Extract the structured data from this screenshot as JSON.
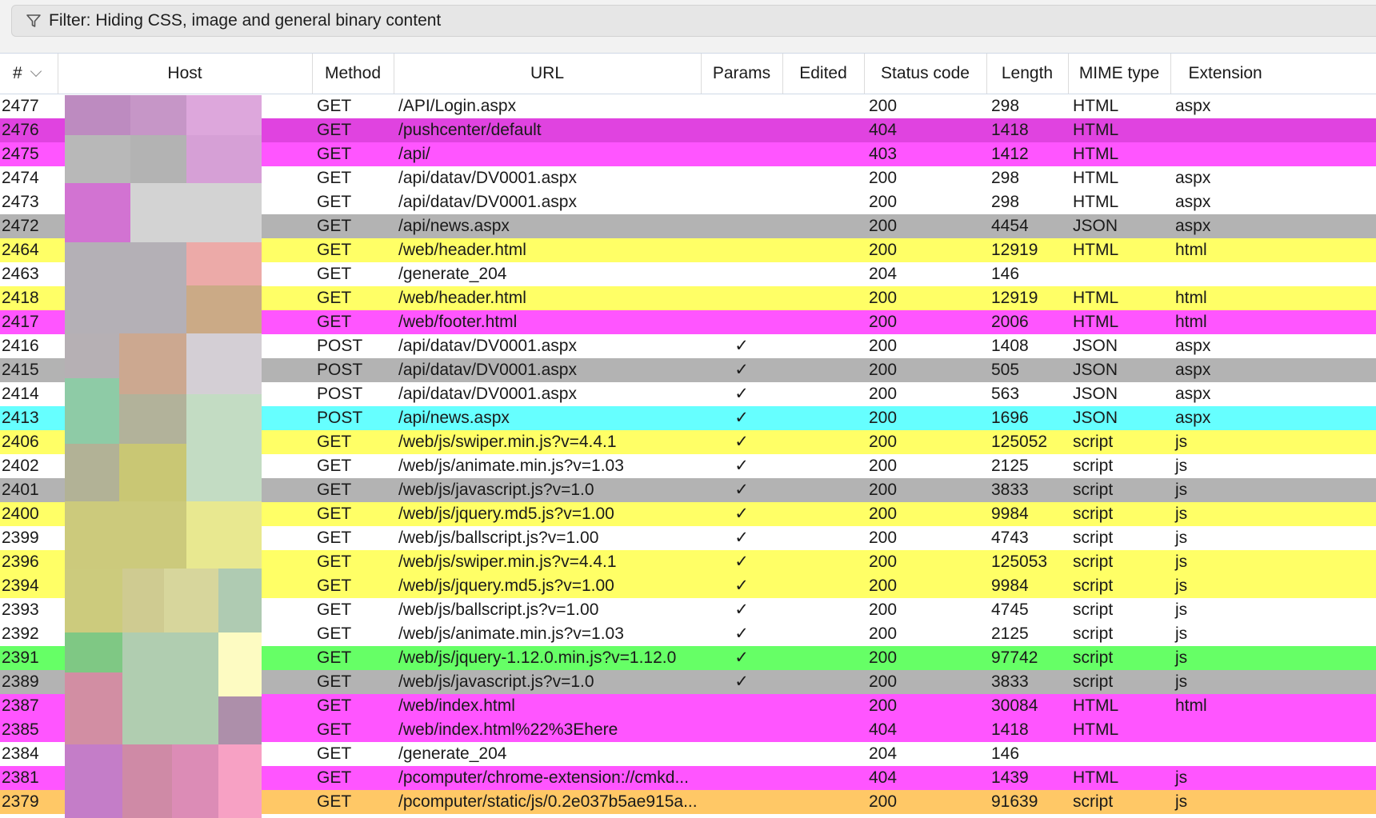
{
  "filter": {
    "icon": "funnel-icon",
    "text": "Filter: Hiding CSS, image and general binary content"
  },
  "columns": [
    {
      "key": "num",
      "label": "#"
    },
    {
      "key": "host",
      "label": "Host"
    },
    {
      "key": "method",
      "label": "Method"
    },
    {
      "key": "url",
      "label": "URL"
    },
    {
      "key": "params",
      "label": "Params"
    },
    {
      "key": "edited",
      "label": "Edited"
    },
    {
      "key": "status",
      "label": "Status code"
    },
    {
      "key": "length",
      "label": "Length"
    },
    {
      "key": "mime",
      "label": "MIME type"
    },
    {
      "key": "ext",
      "label": "Extension"
    }
  ],
  "sort_indicator": "chevron-down-icon",
  "check_glyph": "✓",
  "row_colors": {
    "white": "#ffffff",
    "magenta_dark": "#e043e0",
    "magenta": "#ff55ff",
    "gray": "#b3b3b3",
    "yellow": "#ffff66",
    "cyan": "#66ffff",
    "green": "#66ff66",
    "orange": "#ffc866"
  },
  "rows": [
    {
      "num": "2477",
      "method": "GET",
      "url": "/API/Login.aspx",
      "params": false,
      "status": "200",
      "length": "298",
      "mime": "HTML",
      "ext": "aspx",
      "color": "white"
    },
    {
      "num": "2476",
      "method": "GET",
      "url": "/pushcenter/default",
      "params": false,
      "status": "404",
      "length": "1418",
      "mime": "HTML",
      "ext": "",
      "color": "magenta_dark"
    },
    {
      "num": "2475",
      "method": "GET",
      "url": "/api/",
      "params": false,
      "status": "403",
      "length": "1412",
      "mime": "HTML",
      "ext": "",
      "color": "magenta"
    },
    {
      "num": "2474",
      "method": "GET",
      "url": "/api/datav/DV0001.aspx",
      "params": false,
      "status": "200",
      "length": "298",
      "mime": "HTML",
      "ext": "aspx",
      "color": "white"
    },
    {
      "num": "2473",
      "method": "GET",
      "url": "/api/datav/DV0001.aspx",
      "params": false,
      "status": "200",
      "length": "298",
      "mime": "HTML",
      "ext": "aspx",
      "color": "white"
    },
    {
      "num": "2472",
      "method": "GET",
      "url": "/api/news.aspx",
      "params": false,
      "status": "200",
      "length": "4454",
      "mime": "JSON",
      "ext": "aspx",
      "color": "gray"
    },
    {
      "num": "2464",
      "method": "GET",
      "url": "/web/header.html",
      "params": false,
      "status": "200",
      "length": "12919",
      "mime": "HTML",
      "ext": "html",
      "color": "yellow"
    },
    {
      "num": "2463",
      "method": "GET",
      "url": "/generate_204",
      "params": false,
      "status": "204",
      "length": "146",
      "mime": "",
      "ext": "",
      "color": "white"
    },
    {
      "num": "2418",
      "method": "GET",
      "url": "/web/header.html",
      "params": false,
      "status": "200",
      "length": "12919",
      "mime": "HTML",
      "ext": "html",
      "color": "yellow"
    },
    {
      "num": "2417",
      "method": "GET",
      "url": "/web/footer.html",
      "params": false,
      "status": "200",
      "length": "2006",
      "mime": "HTML",
      "ext": "html",
      "color": "magenta"
    },
    {
      "num": "2416",
      "method": "POST",
      "url": "/api/datav/DV0001.aspx",
      "params": true,
      "status": "200",
      "length": "1408",
      "mime": "JSON",
      "ext": "aspx",
      "color": "white"
    },
    {
      "num": "2415",
      "method": "POST",
      "url": "/api/datav/DV0001.aspx",
      "params": true,
      "status": "200",
      "length": "505",
      "mime": "JSON",
      "ext": "aspx",
      "color": "gray"
    },
    {
      "num": "2414",
      "method": "POST",
      "url": "/api/datav/DV0001.aspx",
      "params": true,
      "status": "200",
      "length": "563",
      "mime": "JSON",
      "ext": "aspx",
      "color": "white"
    },
    {
      "num": "2413",
      "method": "POST",
      "url": "/api/news.aspx",
      "params": true,
      "status": "200",
      "length": "1696",
      "mime": "JSON",
      "ext": "aspx",
      "color": "cyan"
    },
    {
      "num": "2406",
      "method": "GET",
      "url": "/web/js/swiper.min.js?v=4.4.1",
      "params": true,
      "status": "200",
      "length": "125052",
      "mime": "script",
      "ext": "js",
      "color": "yellow"
    },
    {
      "num": "2402",
      "method": "GET",
      "url": "/web/js/animate.min.js?v=1.03",
      "params": true,
      "status": "200",
      "length": "2125",
      "mime": "script",
      "ext": "js",
      "color": "white"
    },
    {
      "num": "2401",
      "method": "GET",
      "url": "/web/js/javascript.js?v=1.0",
      "params": true,
      "status": "200",
      "length": "3833",
      "mime": "script",
      "ext": "js",
      "color": "gray"
    },
    {
      "num": "2400",
      "method": "GET",
      "url": "/web/js/jquery.md5.js?v=1.00",
      "params": true,
      "status": "200",
      "length": "9984",
      "mime": "script",
      "ext": "js",
      "color": "yellow"
    },
    {
      "num": "2399",
      "method": "GET",
      "url": "/web/js/ballscript.js?v=1.00",
      "params": true,
      "status": "200",
      "length": "4743",
      "mime": "script",
      "ext": "js",
      "color": "white"
    },
    {
      "num": "2396",
      "method": "GET",
      "url": "/web/js/swiper.min.js?v=4.4.1",
      "params": true,
      "status": "200",
      "length": "125053",
      "mime": "script",
      "ext": "js",
      "color": "yellow"
    },
    {
      "num": "2394",
      "method": "GET",
      "url": "/web/js/jquery.md5.js?v=1.00",
      "params": true,
      "status": "200",
      "length": "9984",
      "mime": "script",
      "ext": "js",
      "color": "yellow"
    },
    {
      "num": "2393",
      "method": "GET",
      "url": "/web/js/ballscript.js?v=1.00",
      "params": true,
      "status": "200",
      "length": "4745",
      "mime": "script",
      "ext": "js",
      "color": "white"
    },
    {
      "num": "2392",
      "method": "GET",
      "url": "/web/js/animate.min.js?v=1.03",
      "params": true,
      "status": "200",
      "length": "2125",
      "mime": "script",
      "ext": "js",
      "color": "white"
    },
    {
      "num": "2391",
      "method": "GET",
      "url": "/web/js/jquery-1.12.0.min.js?v=1.12.0",
      "params": true,
      "status": "200",
      "length": "97742",
      "mime": "script",
      "ext": "js",
      "color": "green"
    },
    {
      "num": "2389",
      "method": "GET",
      "url": "/web/js/javascript.js?v=1.0",
      "params": true,
      "status": "200",
      "length": "3833",
      "mime": "script",
      "ext": "js",
      "color": "gray"
    },
    {
      "num": "2387",
      "method": "GET",
      "url": "/web/index.html",
      "params": false,
      "status": "200",
      "length": "30084",
      "mime": "HTML",
      "ext": "html",
      "color": "magenta"
    },
    {
      "num": "2385",
      "method": "GET",
      "url": "/web/index.html%22%3Ehere",
      "params": false,
      "status": "404",
      "length": "1418",
      "mime": "HTML",
      "ext": "",
      "color": "magenta"
    },
    {
      "num": "2384",
      "method": "GET",
      "url": "/generate_204",
      "params": false,
      "status": "204",
      "length": "146",
      "mime": "",
      "ext": "",
      "color": "white"
    },
    {
      "num": "2381",
      "method": "GET",
      "url": "/pcomputer/chrome-extension://cmkd...",
      "params": false,
      "status": "404",
      "length": "1439",
      "mime": "HTML",
      "ext": "js",
      "color": "magenta"
    },
    {
      "num": "2379",
      "method": "GET",
      "url": "/pcomputer/static/js/0.2e037b5ae915a...",
      "params": false,
      "status": "200",
      "length": "91639",
      "mime": "script",
      "ext": "js",
      "color": "orange"
    }
  ]
}
